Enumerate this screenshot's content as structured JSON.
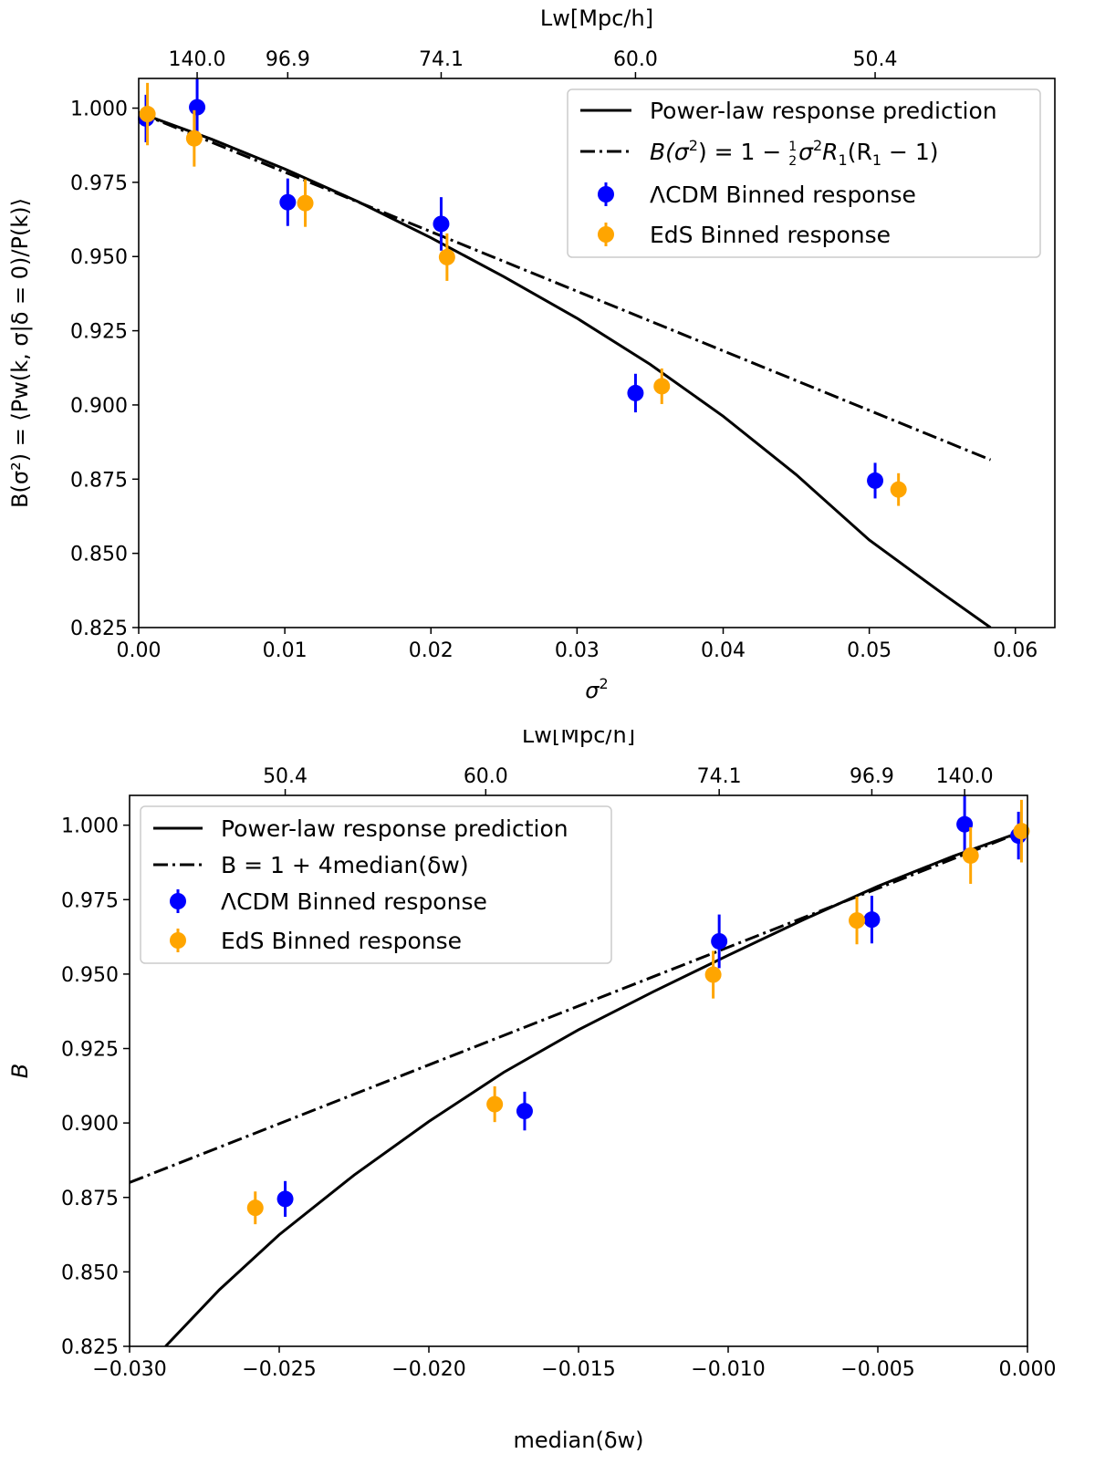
{
  "chart_data": [
    {
      "type": "line",
      "panel": "top",
      "xlabel_main": "σ",
      "xlabel_sup": "2",
      "ylabel": "B(σ²) = ⟨Pw(k, σ|δ = 0)/P(k)⟩",
      "top_axis_label": "Lw[Mpc/h]",
      "xlim": [
        0.0,
        0.0627
      ],
      "ylim": [
        0.825,
        1.01
      ],
      "x_ticks": [
        0.0,
        0.01,
        0.02,
        0.03,
        0.04,
        0.05,
        0.06
      ],
      "x_tick_labels": [
        "0.00",
        "0.01",
        "0.02",
        "0.03",
        "0.04",
        "0.05",
        "0.06"
      ],
      "y_ticks": [
        0.825,
        0.85,
        0.875,
        0.9,
        0.925,
        0.95,
        0.975,
        1.0
      ],
      "y_tick_labels": [
        "0.825",
        "0.850",
        "0.875",
        "0.900",
        "0.925",
        "0.950",
        "0.975",
        "1.000"
      ],
      "top_ticks": [
        0.004,
        0.0102,
        0.0207,
        0.034,
        0.0504
      ],
      "top_tick_labels": [
        "140.0",
        "96.9",
        "74.1",
        "60.0",
        "50.4"
      ],
      "legend_position": "upper right",
      "series": [
        {
          "name": "Power-law response prediction",
          "style": "solid",
          "color": "#000000",
          "x": [
            0.0,
            0.005,
            0.01,
            0.015,
            0.02,
            0.025,
            0.03,
            0.035,
            0.04,
            0.045,
            0.05,
            0.055,
            0.0583
          ],
          "y": [
            0.9985,
            0.9895,
            0.9795,
            0.9685,
            0.9563,
            0.9432,
            0.9292,
            0.9137,
            0.8962,
            0.8765,
            0.8545,
            0.8365,
            0.825
          ]
        },
        {
          "name": "B(σ²) = 1 − ½σ²R₁(R₁ − 1)",
          "legend_parts": {
            "a": "B(σ",
            "b": "2",
            "c": ") = 1 − ",
            "d": "1",
            "e": "2",
            "f": "σ",
            "g": "2",
            "h": "R",
            "i": "1",
            "j": "(R",
            "k": "1",
            "l": " − 1)"
          },
          "style": "dashdot",
          "color": "#000000",
          "x": [
            0.0,
            0.0583
          ],
          "y": [
            0.9985,
            0.8815
          ]
        },
        {
          "name": "ΛCDM Binned response",
          "style": "errorbar",
          "color": "#0000ff",
          "x": [
            0.0005,
            0.004,
            0.0102,
            0.0207,
            0.034,
            0.0504
          ],
          "y": [
            0.9965,
            1.0003,
            0.9683,
            0.961,
            0.904,
            0.8745
          ],
          "yerr": [
            0.008,
            0.0105,
            0.008,
            0.009,
            0.0065,
            0.006
          ]
        },
        {
          "name": "EdS Binned response",
          "style": "errorbar",
          "color": "#ffa500",
          "x": [
            0.0006,
            0.0038,
            0.0114,
            0.0211,
            0.0358,
            0.052
          ],
          "y": [
            0.998,
            0.9898,
            0.968,
            0.9498,
            0.9063,
            0.8715
          ],
          "yerr": [
            0.0105,
            0.0095,
            0.008,
            0.008,
            0.006,
            0.0055
          ]
        }
      ]
    },
    {
      "type": "line",
      "panel": "bottom",
      "xlabel": "median(δw)",
      "ylabel": "B",
      "top_axis_label": "Lw[Mpc/h]",
      "xlim": [
        -0.03,
        0.0
      ],
      "ylim": [
        0.825,
        1.01
      ],
      "x_ticks": [
        -0.03,
        -0.025,
        -0.02,
        -0.015,
        -0.01,
        -0.005,
        0.0
      ],
      "x_tick_labels": [
        "−0.030",
        "−0.025",
        "−0.020",
        "−0.015",
        "−0.010",
        "−0.005",
        "0.000"
      ],
      "y_ticks": [
        0.825,
        0.85,
        0.875,
        0.9,
        0.925,
        0.95,
        0.975,
        1.0
      ],
      "y_tick_labels": [
        "0.825",
        "0.850",
        "0.875",
        "0.900",
        "0.925",
        "0.950",
        "0.975",
        "1.000"
      ],
      "top_ticks": [
        -0.0248,
        -0.0181,
        -0.0103,
        -0.0052,
        -0.0021
      ],
      "top_tick_labels": [
        "50.4",
        "60.0",
        "74.1",
        "96.9",
        "140.0"
      ],
      "legend_position": "upper left",
      "series": [
        {
          "name": "Power-law response prediction",
          "style": "solid",
          "color": "#000000",
          "x": [
            -0.0288,
            -0.027,
            -0.025,
            -0.0225,
            -0.02,
            -0.0175,
            -0.015,
            -0.0125,
            -0.01,
            -0.0075,
            -0.005,
            -0.0025,
            0.0
          ],
          "y": [
            0.825,
            0.844,
            0.8625,
            0.8825,
            0.9005,
            0.917,
            0.9313,
            0.9441,
            0.9563,
            0.9682,
            0.9795,
            0.9895,
            0.9985
          ]
        },
        {
          "name": "B = 1 + 4median(δw)",
          "style": "dashdot",
          "color": "#000000",
          "x": [
            -0.03,
            0.0
          ],
          "y": [
            0.88,
            0.9985
          ]
        },
        {
          "name": "ΛCDM Binned response",
          "style": "errorbar",
          "color": "#0000ff",
          "x": [
            -0.0003,
            -0.0021,
            -0.0052,
            -0.0103,
            -0.0168,
            -0.0248
          ],
          "y": [
            0.9965,
            1.0003,
            0.9683,
            0.961,
            0.904,
            0.8745
          ],
          "yerr": [
            0.008,
            0.0105,
            0.008,
            0.009,
            0.0065,
            0.006
          ]
        },
        {
          "name": "EdS Binned response",
          "style": "errorbar",
          "color": "#ffa500",
          "x": [
            -0.0002,
            -0.0019,
            -0.0057,
            -0.0105,
            -0.0178,
            -0.0258
          ],
          "y": [
            0.998,
            0.9898,
            0.968,
            0.9498,
            0.9063,
            0.8715
          ],
          "yerr": [
            0.0105,
            0.0095,
            0.008,
            0.008,
            0.006,
            0.0055
          ]
        }
      ]
    }
  ]
}
